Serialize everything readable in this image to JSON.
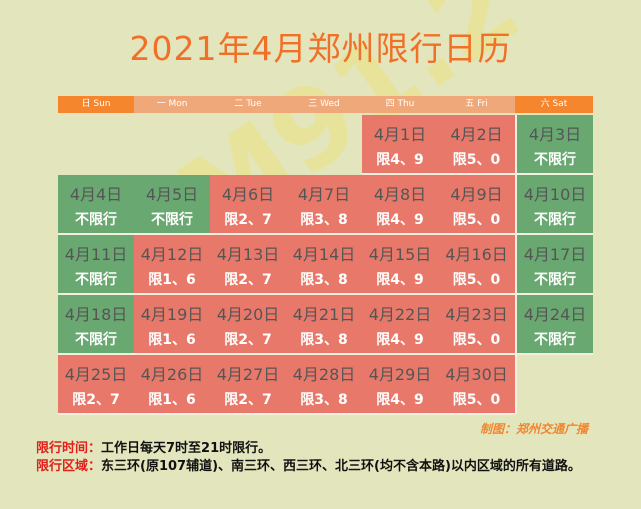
{
  "title": "2021年4月郑州限行日历",
  "watermark": "FM91.2",
  "weekdays": [
    {
      "label": "日 Sun",
      "weekend": true
    },
    {
      "label": "一 Mon"
    },
    {
      "label": "二 Tue"
    },
    {
      "label": "三 Wed"
    },
    {
      "label": "四 Thu"
    },
    {
      "label": "五 Fri"
    },
    {
      "label": "六 Sat",
      "weekend": true
    }
  ],
  "colors": {
    "restricted": "#e8796a",
    "unrestricted": "#6aa872",
    "header_weekend": "#f5862e",
    "header_weekday": "#efa87a",
    "title": "#f07028"
  },
  "weeks": [
    [
      null,
      null,
      null,
      null,
      {
        "date": "4月1日",
        "rule": "限4、9",
        "type": "red"
      },
      {
        "date": "4月2日",
        "rule": "限5、0",
        "type": "red"
      },
      {
        "date": "4月3日",
        "rule": "不限行",
        "type": "green"
      }
    ],
    [
      {
        "date": "4月4日",
        "rule": "不限行",
        "type": "green"
      },
      {
        "date": "4月5日",
        "rule": "不限行",
        "type": "green"
      },
      {
        "date": "4月6日",
        "rule": "限2、7",
        "type": "red"
      },
      {
        "date": "4月7日",
        "rule": "限3、8",
        "type": "red"
      },
      {
        "date": "4月8日",
        "rule": "限4、9",
        "type": "red"
      },
      {
        "date": "4月9日",
        "rule": "限5、0",
        "type": "red"
      },
      {
        "date": "4月10日",
        "rule": "不限行",
        "type": "green"
      }
    ],
    [
      {
        "date": "4月11日",
        "rule": "不限行",
        "type": "green"
      },
      {
        "date": "4月12日",
        "rule": "限1、6",
        "type": "red"
      },
      {
        "date": "4月13日",
        "rule": "限2、7",
        "type": "red"
      },
      {
        "date": "4月14日",
        "rule": "限3、8",
        "type": "red"
      },
      {
        "date": "4月15日",
        "rule": "限4、9",
        "type": "red"
      },
      {
        "date": "4月16日",
        "rule": "限5、0",
        "type": "red"
      },
      {
        "date": "4月17日",
        "rule": "不限行",
        "type": "green"
      }
    ],
    [
      {
        "date": "4月18日",
        "rule": "不限行",
        "type": "green"
      },
      {
        "date": "4月19日",
        "rule": "限1、6",
        "type": "red"
      },
      {
        "date": "4月20日",
        "rule": "限2、7",
        "type": "red"
      },
      {
        "date": "4月21日",
        "rule": "限3、8",
        "type": "red"
      },
      {
        "date": "4月22日",
        "rule": "限4、9",
        "type": "red"
      },
      {
        "date": "4月23日",
        "rule": "限5、0",
        "type": "red"
      },
      {
        "date": "4月24日",
        "rule": "不限行",
        "type": "green"
      }
    ],
    [
      {
        "date": "4月25日",
        "rule": "限2、7",
        "type": "red"
      },
      {
        "date": "4月26日",
        "rule": "限1、6",
        "type": "red"
      },
      {
        "date": "4月27日",
        "rule": "限2、7",
        "type": "red"
      },
      {
        "date": "4月28日",
        "rule": "限3、8",
        "type": "red"
      },
      {
        "date": "4月29日",
        "rule": "限4、9",
        "type": "red"
      },
      {
        "date": "4月30日",
        "rule": "限5、0",
        "type": "red"
      },
      null
    ]
  ],
  "credit": "制图：郑州交通广播",
  "notes": [
    {
      "label": "限行时间：",
      "text": "工作日每天7时至21时限行。"
    },
    {
      "label": "限行区域：",
      "text": "东三环(原107辅道)、南三环、西三环、北三环(均不含本路)以内区域的所有道路。"
    }
  ]
}
